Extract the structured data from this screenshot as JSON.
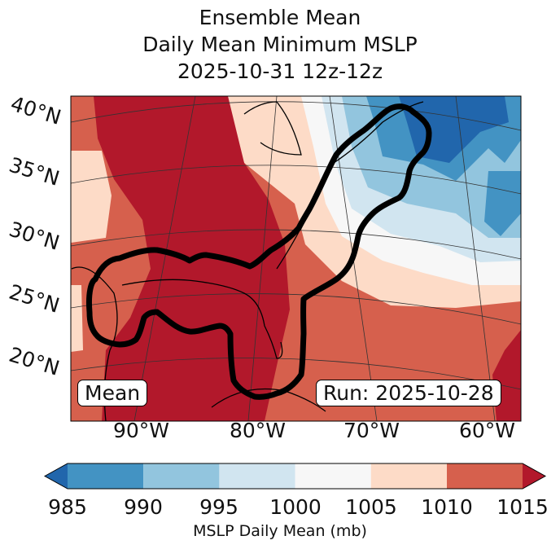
{
  "title": {
    "line1": "Ensemble Mean",
    "line2": "Daily Mean Minimum MSLP",
    "line3": "2025-10-31 12z-12z"
  },
  "lat_labels": [
    "40°N",
    "35°N",
    "30°N",
    "25°N",
    "20°N"
  ],
  "lon_labels": [
    "90°W",
    "80°W",
    "70°W",
    "60°W"
  ],
  "annotations": {
    "left": "Mean",
    "right": "Run: 2025-10-28"
  },
  "colorbar": {
    "label": "MSLP Daily Mean (mb)",
    "ticks": [
      "985",
      "990",
      "995",
      "1000",
      "1005",
      "1010",
      "1015"
    ],
    "extend": "both",
    "colors": {
      "under": "#2166ac",
      "c985": "#4393c3",
      "c990": "#92c5de",
      "c995": "#d1e5f0",
      "c1000": "#f7f7f7",
      "c1005": "#fddbc7",
      "c1010": "#d6604d",
      "over": "#b2182b"
    }
  },
  "chart_data": {
    "type": "heatmap",
    "title": "Ensemble Mean Daily Mean Minimum MSLP 2025-10-31 12z-12z",
    "variable": "MSLP Daily Mean (mb)",
    "levels": [
      985,
      990,
      995,
      1000,
      1005,
      1010,
      1015
    ],
    "extent": {
      "lon": [
        -96,
        -59
      ],
      "lat": [
        17,
        40
      ]
    },
    "summary": "Lowest pressures (<985 mb) off New England / Maritimes; highest (>1015 mb) over Gulf of Mexico and eastern US; black contour outlines region from Gulf to Gulf of Maine"
  }
}
